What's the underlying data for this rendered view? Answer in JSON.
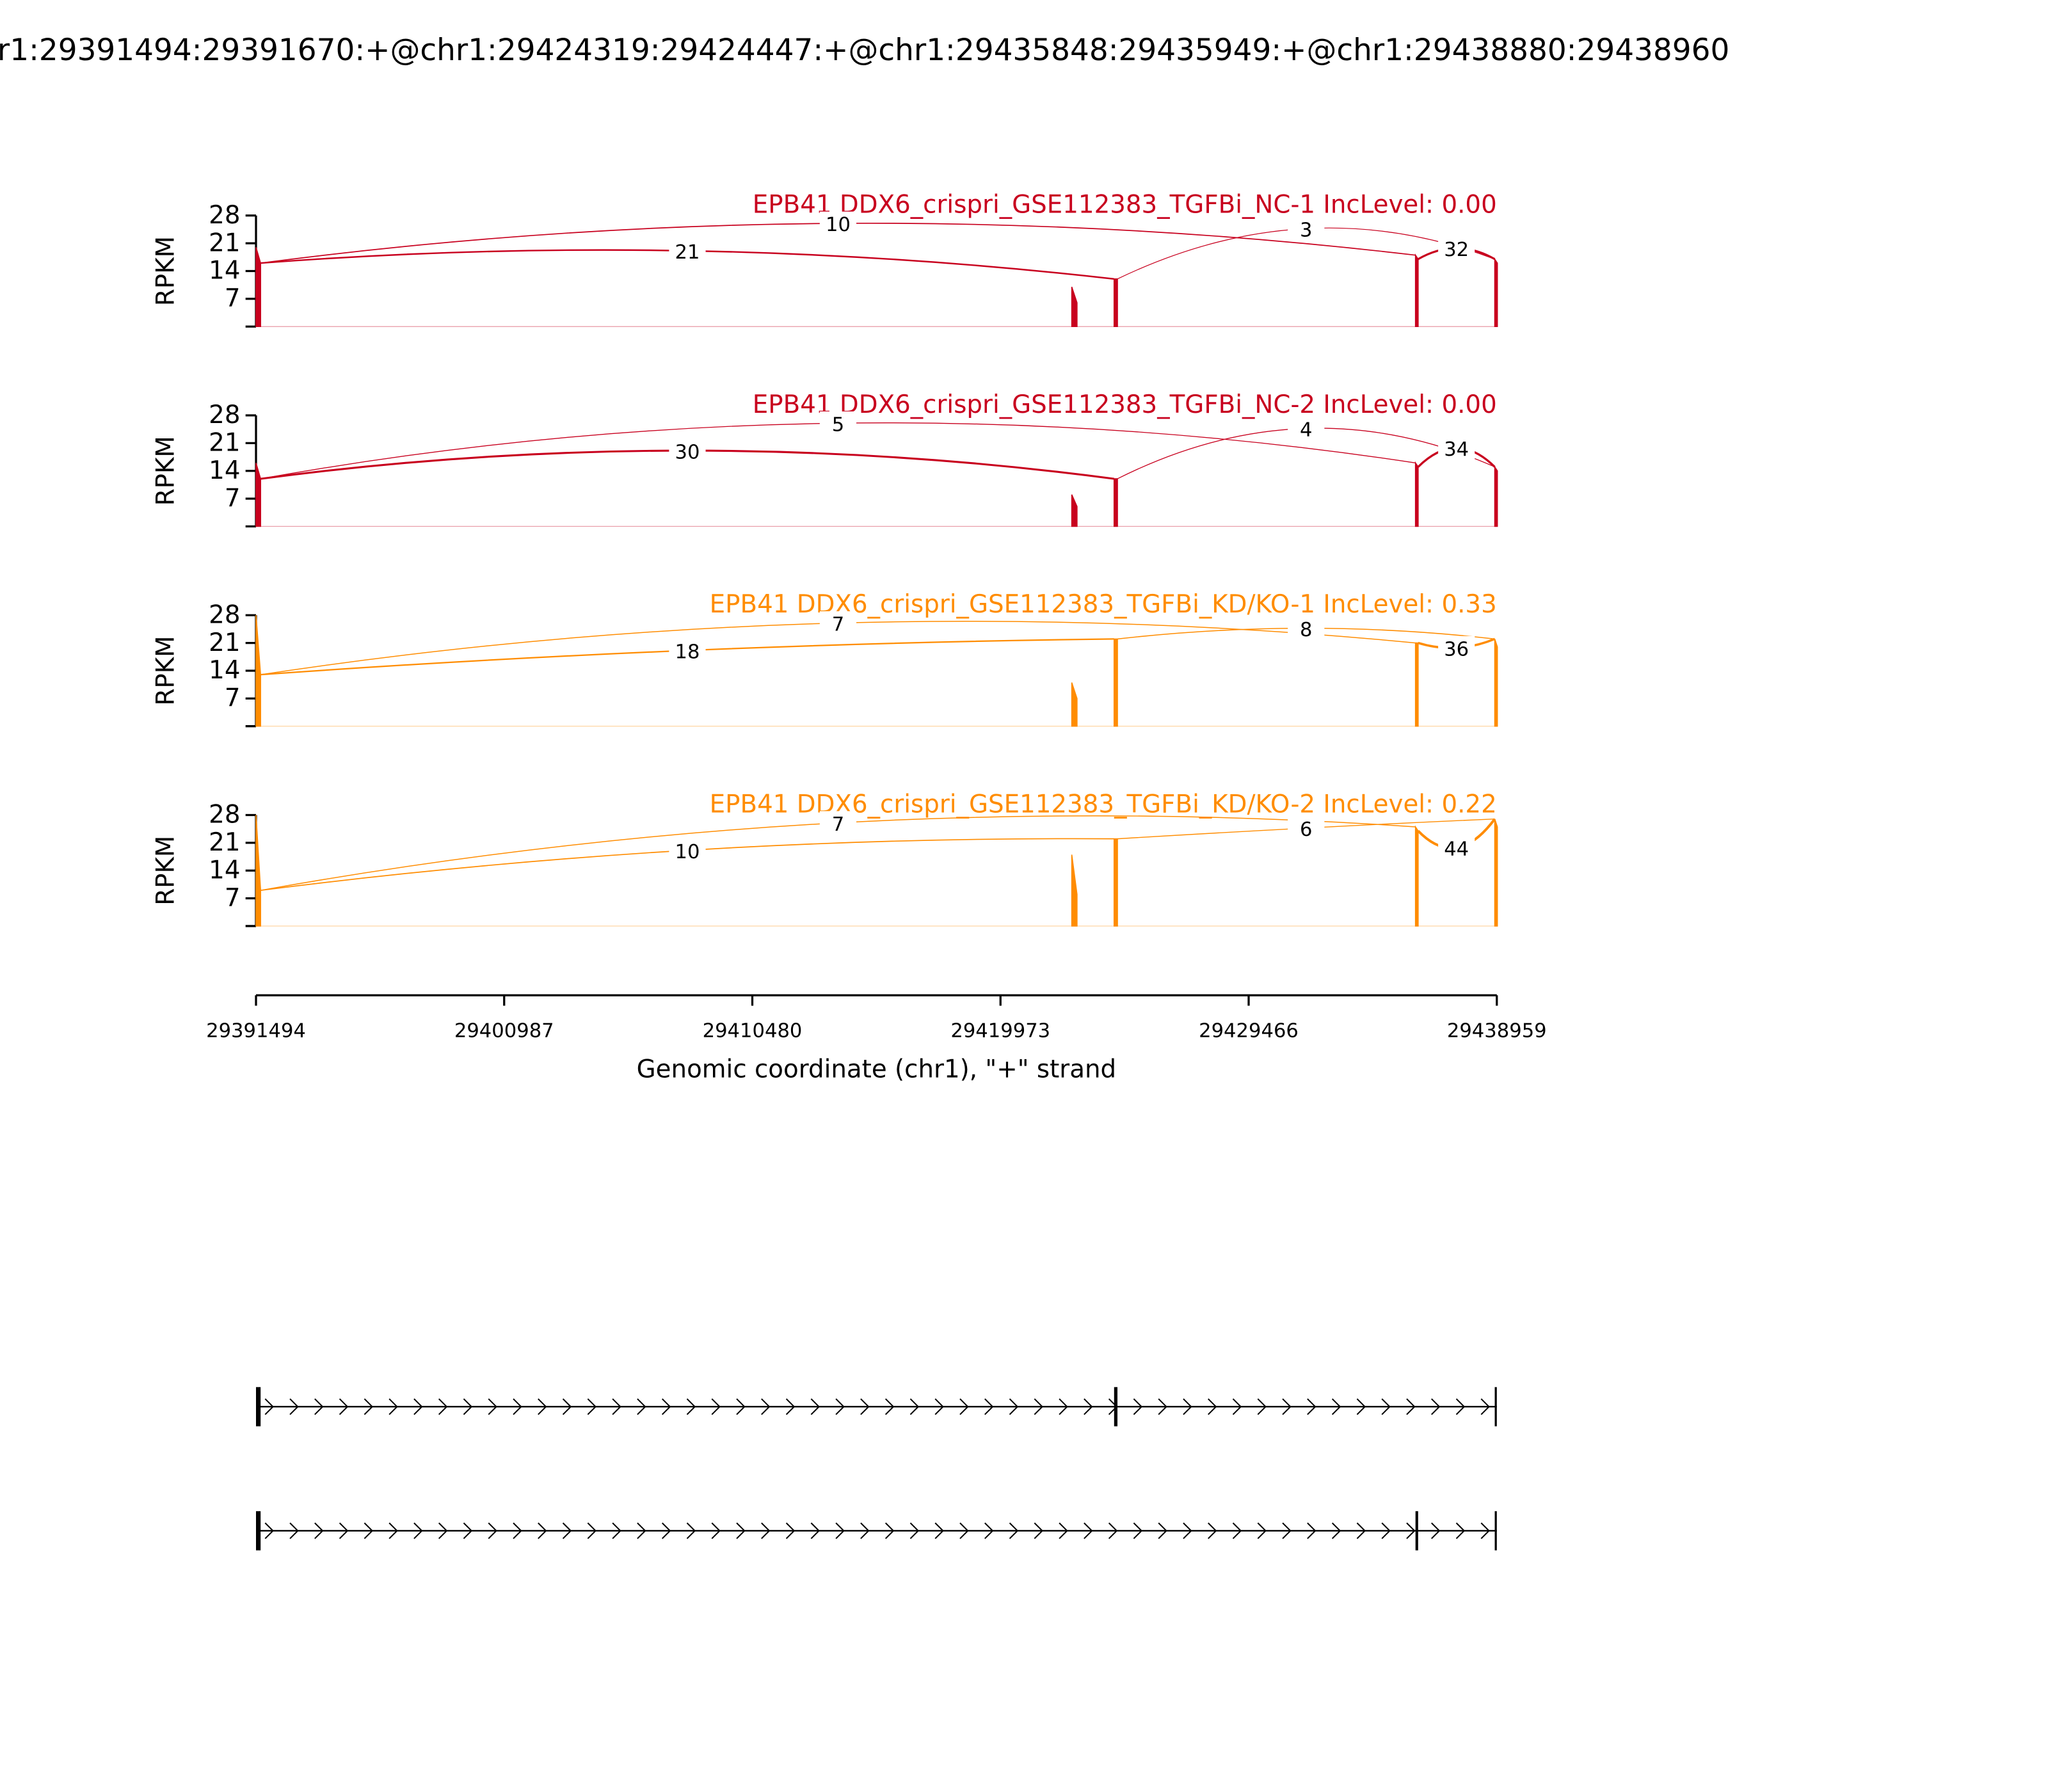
{
  "chart_data": {
    "type": "sashimi",
    "title": "r1:29391494:29391670:+@chr1:29424319:29424447:+@chr1:29435848:29435949:+@chr1:29438880:29438960",
    "xlabel": "Genomic coordinate (chr1), \"+\" strand",
    "ylabel": "RPKM",
    "xlim": [
      29391494,
      29438959
    ],
    "xticks": [
      29391494,
      29400987,
      29410480,
      29419973,
      29429466,
      29438959
    ],
    "panels": [
      {
        "title": "EPB41 DDX6_crispri_GSE112383_TGFBi_NC-1 IncLevel: 0.00",
        "color": "#c8001e",
        "ylim": [
          0,
          28
        ],
        "yticks": [
          7,
          14,
          21,
          28
        ],
        "coverage": {
          "x": [
            29391494,
            29391670,
            null,
            29422700,
            29422900,
            null,
            29424319,
            29424447,
            null,
            29435848,
            29435949,
            null,
            29438880,
            29438960
          ],
          "values": [
            20,
            16,
            null,
            10,
            6,
            null,
            12,
            12,
            null,
            18,
            17,
            null,
            17,
            16
          ]
        },
        "junctions": [
          {
            "start": 29391670,
            "end": 29424319,
            "count": 21
          },
          {
            "start": 29391670,
            "end": 29435848,
            "count": 10
          },
          {
            "start": 29424447,
            "end": 29438880,
            "count": 3
          },
          {
            "start": 29435949,
            "end": 29438880,
            "count": 32
          }
        ]
      },
      {
        "title": "EPB41 DDX6_crispri_GSE112383_TGFBi_NC-2 IncLevel: 0.00",
        "color": "#c8001e",
        "ylim": [
          0,
          28
        ],
        "yticks": [
          7,
          14,
          21,
          28
        ],
        "coverage": {
          "x": [
            29391494,
            29391670,
            null,
            29422700,
            29422900,
            null,
            29424319,
            29424447,
            null,
            29435848,
            29435949,
            null,
            29438880,
            29438960
          ],
          "values": [
            16,
            12,
            null,
            8,
            5,
            null,
            12,
            12,
            null,
            16,
            15,
            null,
            15,
            14
          ]
        },
        "junctions": [
          {
            "start": 29391670,
            "end": 29424319,
            "count": 30
          },
          {
            "start": 29391670,
            "end": 29435848,
            "count": 5
          },
          {
            "start": 29424447,
            "end": 29438880,
            "count": 4
          },
          {
            "start": 29435949,
            "end": 29438880,
            "count": 34
          }
        ]
      },
      {
        "title": "EPB41 DDX6_crispri_GSE112383_TGFBi_KD/KO-1 IncLevel: 0.33",
        "color": "#ff8c00",
        "ylim": [
          0,
          28
        ],
        "yticks": [
          7,
          14,
          21,
          28
        ],
        "coverage": {
          "x": [
            29391494,
            29391670,
            null,
            29422700,
            29422900,
            null,
            29424319,
            29424447,
            null,
            29435848,
            29435949,
            null,
            29438880,
            29438960
          ],
          "values": [
            28,
            13,
            null,
            11,
            7,
            null,
            22,
            22,
            null,
            21,
            21,
            null,
            22,
            20
          ]
        },
        "junctions": [
          {
            "start": 29391670,
            "end": 29424319,
            "count": 18
          },
          {
            "start": 29391670,
            "end": 29435848,
            "count": 7
          },
          {
            "start": 29424447,
            "end": 29438880,
            "count": 8
          },
          {
            "start": 29435949,
            "end": 29438880,
            "count": 36
          }
        ]
      },
      {
        "title": "EPB41 DDX6_crispri_GSE112383_TGFBi_KD/KO-2 IncLevel: 0.22",
        "color": "#ff8c00",
        "ylim": [
          0,
          28
        ],
        "yticks": [
          7,
          14,
          21,
          28
        ],
        "coverage": {
          "x": [
            29391494,
            29391670,
            null,
            29422700,
            29422900,
            null,
            29424319,
            29424447,
            null,
            29435848,
            29435949,
            null,
            29438880,
            29438960
          ],
          "values": [
            28,
            9,
            null,
            18,
            8,
            null,
            22,
            22,
            null,
            25,
            24,
            null,
            27,
            25
          ]
        },
        "junctions": [
          {
            "start": 29391670,
            "end": 29424319,
            "count": 10
          },
          {
            "start": 29391670,
            "end": 29435848,
            "count": 7
          },
          {
            "start": 29424447,
            "end": 29438880,
            "count": 6
          },
          {
            "start": 29435949,
            "end": 29438880,
            "count": 44
          }
        ]
      }
    ],
    "transcripts": [
      {
        "exons": [
          [
            29391494,
            29391670
          ],
          [
            29424319,
            29424447
          ],
          [
            29438880,
            29438960
          ]
        ]
      },
      {
        "exons": [
          [
            29391494,
            29391670
          ],
          [
            29435848,
            29435949
          ],
          [
            29438880,
            29438960
          ]
        ]
      }
    ]
  }
}
